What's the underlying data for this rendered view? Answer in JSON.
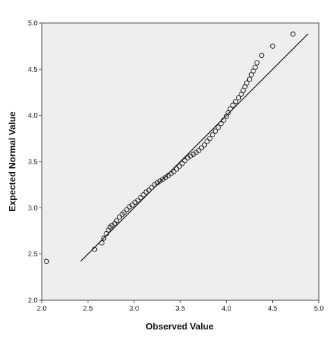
{
  "chart_data": {
    "type": "scatter",
    "title": "",
    "xlabel": "Observed Value",
    "ylabel": "Expected Normal Value",
    "xlim": [
      2.0,
      5.0
    ],
    "ylim": [
      2.0,
      5.0
    ],
    "x_ticks": [
      "2.0",
      "2.5",
      "3.0",
      "3.5",
      "4.0",
      "4.5",
      "5.0"
    ],
    "y_ticks": [
      "2.0",
      "2.5",
      "3.0",
      "3.5",
      "4.0",
      "4.5",
      "5.0"
    ],
    "grid": false,
    "plot_background": "#eeeeee",
    "marker": "open-circle",
    "marker_color": "#222222",
    "line_color": "#111111",
    "reference_line": {
      "x": [
        2.42,
        4.88
      ],
      "y": [
        2.42,
        4.88
      ]
    },
    "series": [
      {
        "points": [
          [
            2.05,
            2.42
          ],
          [
            2.57,
            2.55
          ],
          [
            2.65,
            2.62
          ],
          [
            2.67,
            2.67
          ],
          [
            2.7,
            2.72
          ],
          [
            2.72,
            2.76
          ],
          [
            2.74,
            2.79
          ],
          [
            2.76,
            2.81
          ],
          [
            2.79,
            2.83
          ],
          [
            2.81,
            2.86
          ],
          [
            2.84,
            2.9
          ],
          [
            2.87,
            2.93
          ],
          [
            2.89,
            2.95
          ],
          [
            2.92,
            2.98
          ],
          [
            2.95,
            3.01
          ],
          [
            2.98,
            3.03
          ],
          [
            3.01,
            3.06
          ],
          [
            3.04,
            3.08
          ],
          [
            3.07,
            3.11
          ],
          [
            3.1,
            3.14
          ],
          [
            3.13,
            3.17
          ],
          [
            3.16,
            3.19
          ],
          [
            3.19,
            3.22
          ],
          [
            3.22,
            3.25
          ],
          [
            3.25,
            3.27
          ],
          [
            3.28,
            3.29
          ],
          [
            3.31,
            3.31
          ],
          [
            3.34,
            3.33
          ],
          [
            3.37,
            3.35
          ],
          [
            3.4,
            3.37
          ],
          [
            3.43,
            3.39
          ],
          [
            3.46,
            3.42
          ],
          [
            3.49,
            3.45
          ],
          [
            3.52,
            3.48
          ],
          [
            3.55,
            3.51
          ],
          [
            3.58,
            3.54
          ],
          [
            3.61,
            3.56
          ],
          [
            3.64,
            3.58
          ],
          [
            3.67,
            3.6
          ],
          [
            3.7,
            3.62
          ],
          [
            3.73,
            3.65
          ],
          [
            3.76,
            3.68
          ],
          [
            3.79,
            3.72
          ],
          [
            3.82,
            3.75
          ],
          [
            3.85,
            3.79
          ],
          [
            3.88,
            3.83
          ],
          [
            3.91,
            3.87
          ],
          [
            3.94,
            3.91
          ],
          [
            3.97,
            3.95
          ],
          [
            4.0,
            3.99
          ],
          [
            4.02,
            4.03
          ],
          [
            4.04,
            4.07
          ],
          [
            4.07,
            4.11
          ],
          [
            4.1,
            4.15
          ],
          [
            4.13,
            4.19
          ],
          [
            4.16,
            4.23
          ],
          [
            4.18,
            4.27
          ],
          [
            4.2,
            4.31
          ],
          [
            4.22,
            4.35
          ],
          [
            4.25,
            4.39
          ],
          [
            4.27,
            4.44
          ],
          [
            4.29,
            4.48
          ],
          [
            4.31,
            4.52
          ],
          [
            4.33,
            4.57
          ],
          [
            4.38,
            4.65
          ],
          [
            4.5,
            4.75
          ],
          [
            4.72,
            4.88
          ]
        ]
      }
    ]
  }
}
